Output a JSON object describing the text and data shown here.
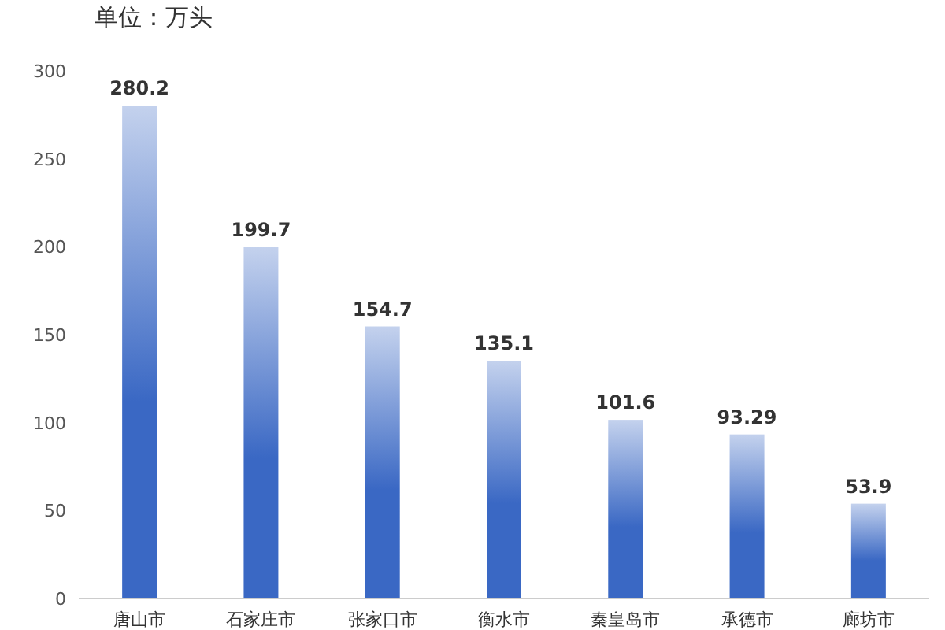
{
  "chart_data": {
    "type": "bar",
    "subtitle": "单位：万头",
    "categories": [
      "唐山市",
      "石家庄市",
      "张家口市",
      "衡水市",
      "秦皇岛市",
      "承德市",
      "廊坊市"
    ],
    "values": [
      280.2,
      199.7,
      154.7,
      135.1,
      101.6,
      93.29,
      53.9
    ],
    "value_labels": [
      "280.2",
      "199.7",
      "154.7",
      "135.1",
      "101.6",
      "93.29",
      "53.9"
    ],
    "color": "#3a68c4",
    "ylim": [
      0,
      300
    ],
    "yticks": [
      0,
      50,
      100,
      150,
      200,
      250,
      300
    ],
    "grid": false
  }
}
